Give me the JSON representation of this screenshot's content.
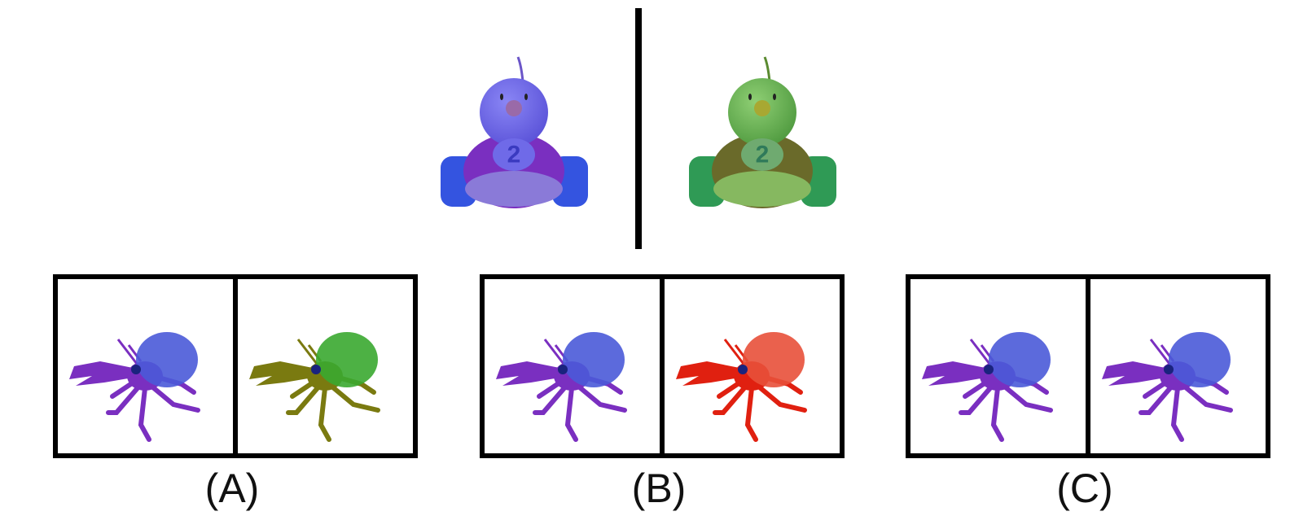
{
  "example": {
    "left_number": "2",
    "right_number": "2"
  },
  "options": [
    {
      "label": "(A)"
    },
    {
      "label": "(B)"
    },
    {
      "label": "(C)"
    }
  ]
}
